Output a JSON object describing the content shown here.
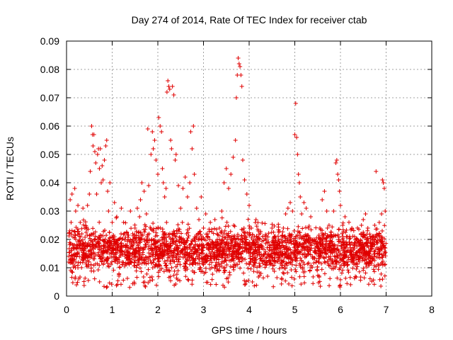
{
  "chart_data": {
    "type": "scatter",
    "title": "Day 274 of 2014, Rate Of TEC Index for receiver ctab",
    "xlabel": "GPS time / hours",
    "ylabel": "ROTI / TECUs",
    "xlim": [
      0,
      8
    ],
    "ylim": [
      0,
      0.09
    ],
    "xticks": [
      "0",
      "1",
      "2",
      "3",
      "4",
      "5",
      "6",
      "7",
      "8"
    ],
    "yticks": [
      "0",
      "0.01",
      "0.02",
      "0.03",
      "0.04",
      "0.05",
      "0.06",
      "0.07",
      "0.08",
      "0.09"
    ],
    "grid": true,
    "marker": "+",
    "color": "#e00000",
    "series": [
      {
        "name": "ROTI",
        "points": [
          [
            0.05,
            0.012
          ],
          [
            0.08,
            0.034
          ],
          [
            0.1,
            0.026
          ],
          [
            0.12,
            0.036
          ],
          [
            0.15,
            0.018
          ],
          [
            0.18,
            0.038
          ],
          [
            0.2,
            0.03
          ],
          [
            0.22,
            0.014
          ],
          [
            0.25,
            0.032
          ],
          [
            0.28,
            0.022
          ],
          [
            0.3,
            0.026
          ],
          [
            0.33,
            0.016
          ],
          [
            0.36,
            0.031
          ],
          [
            0.4,
            0.024
          ],
          [
            0.43,
            0.012
          ],
          [
            0.46,
            0.032
          ],
          [
            0.5,
            0.036
          ],
          [
            0.52,
            0.044
          ],
          [
            0.55,
            0.06
          ],
          [
            0.57,
            0.057
          ],
          [
            0.58,
            0.053
          ],
          [
            0.6,
            0.057
          ],
          [
            0.62,
            0.051
          ],
          [
            0.64,
            0.047
          ],
          [
            0.66,
            0.036
          ],
          [
            0.68,
            0.05
          ],
          [
            0.7,
            0.052
          ],
          [
            0.72,
            0.045
          ],
          [
            0.74,
            0.052
          ],
          [
            0.76,
            0.04
          ],
          [
            0.78,
            0.046
          ],
          [
            0.8,
            0.041
          ],
          [
            0.83,
            0.048
          ],
          [
            0.86,
            0.053
          ],
          [
            0.88,
            0.055
          ],
          [
            0.9,
            0.037
          ],
          [
            0.92,
            0.03
          ],
          [
            0.95,
            0.04
          ],
          [
            1.0,
            0.026
          ],
          [
            1.05,
            0.033
          ],
          [
            1.1,
            0.028
          ],
          [
            1.15,
            0.02
          ],
          [
            1.2,
            0.031
          ],
          [
            1.25,
            0.026
          ],
          [
            1.3,
            0.018
          ],
          [
            1.35,
            0.02
          ],
          [
            1.4,
            0.03
          ],
          [
            1.45,
            0.022
          ],
          [
            1.5,
            0.024
          ],
          [
            1.55,
            0.031
          ],
          [
            1.6,
            0.028
          ],
          [
            1.62,
            0.034
          ],
          [
            1.65,
            0.04
          ],
          [
            1.7,
            0.037
          ],
          [
            1.75,
            0.029
          ],
          [
            1.78,
            0.059
          ],
          [
            1.8,
            0.039
          ],
          [
            1.85,
            0.05
          ],
          [
            1.88,
            0.058
          ],
          [
            1.9,
            0.052
          ],
          [
            1.93,
            0.055
          ],
          [
            1.96,
            0.048
          ],
          [
            2.0,
            0.043
          ],
          [
            2.02,
            0.063
          ],
          [
            2.05,
            0.06
          ],
          [
            2.08,
            0.058
          ],
          [
            2.1,
            0.045
          ],
          [
            2.12,
            0.04
          ],
          [
            2.15,
            0.035
          ],
          [
            2.18,
            0.038
          ],
          [
            2.2,
            0.072
          ],
          [
            2.22,
            0.076
          ],
          [
            2.24,
            0.074
          ],
          [
            2.26,
            0.073
          ],
          [
            2.28,
            0.055
          ],
          [
            2.3,
            0.052
          ],
          [
            2.32,
            0.074
          ],
          [
            2.35,
            0.071
          ],
          [
            2.38,
            0.048
          ],
          [
            2.4,
            0.05
          ],
          [
            2.45,
            0.039
          ],
          [
            2.5,
            0.031
          ],
          [
            2.55,
            0.038
          ],
          [
            2.6,
            0.042
          ],
          [
            2.65,
            0.035
          ],
          [
            2.7,
            0.04
          ],
          [
            2.72,
            0.058
          ],
          [
            2.75,
            0.052
          ],
          [
            2.78,
            0.06
          ],
          [
            2.8,
            0.043
          ],
          [
            2.85,
            0.031
          ],
          [
            2.9,
            0.027
          ],
          [
            2.95,
            0.035
          ],
          [
            3.0,
            0.024
          ],
          [
            3.05,
            0.029
          ],
          [
            3.1,
            0.021
          ],
          [
            3.15,
            0.026
          ],
          [
            3.2,
            0.019
          ],
          [
            3.25,
            0.027
          ],
          [
            3.3,
            0.022
          ],
          [
            3.35,
            0.024
          ],
          [
            3.4,
            0.03
          ],
          [
            3.45,
            0.04
          ],
          [
            3.5,
            0.045
          ],
          [
            3.55,
            0.038
          ],
          [
            3.6,
            0.043
          ],
          [
            3.65,
            0.049
          ],
          [
            3.7,
            0.055
          ],
          [
            3.72,
            0.07
          ],
          [
            3.74,
            0.078
          ],
          [
            3.76,
            0.084
          ],
          [
            3.78,
            0.082
          ],
          [
            3.8,
            0.081
          ],
          [
            3.82,
            0.078
          ],
          [
            3.84,
            0.074
          ],
          [
            3.86,
            0.048
          ],
          [
            3.9,
            0.041
          ],
          [
            3.95,
            0.036
          ],
          [
            4.0,
            0.032
          ],
          [
            4.05,
            0.024
          ],
          [
            4.1,
            0.019
          ],
          [
            4.15,
            0.027
          ],
          [
            4.2,
            0.023
          ],
          [
            4.25,
            0.018
          ],
          [
            4.3,
            0.021
          ],
          [
            4.35,
            0.015
          ],
          [
            4.4,
            0.012
          ],
          [
            4.45,
            0.018
          ],
          [
            4.5,
            0.024
          ],
          [
            4.55,
            0.021
          ],
          [
            4.6,
            0.017
          ],
          [
            4.65,
            0.013
          ],
          [
            4.7,
            0.02
          ],
          [
            4.75,
            0.024
          ],
          [
            4.8,
            0.029
          ],
          [
            4.85,
            0.031
          ],
          [
            4.9,
            0.033
          ],
          [
            4.95,
            0.03
          ],
          [
            5.0,
            0.057
          ],
          [
            5.02,
            0.068
          ],
          [
            5.04,
            0.056
          ],
          [
            5.06,
            0.05
          ],
          [
            5.08,
            0.043
          ],
          [
            5.1,
            0.04
          ],
          [
            5.12,
            0.035
          ],
          [
            5.15,
            0.029
          ],
          [
            5.2,
            0.033
          ],
          [
            5.25,
            0.031
          ],
          [
            5.3,
            0.024
          ],
          [
            5.35,
            0.028
          ],
          [
            5.4,
            0.02
          ],
          [
            5.45,
            0.016
          ],
          [
            5.5,
            0.018
          ],
          [
            5.55,
            0.024
          ],
          [
            5.6,
            0.034
          ],
          [
            5.65,
            0.037
          ],
          [
            5.7,
            0.03
          ],
          [
            5.75,
            0.025
          ],
          [
            5.8,
            0.021
          ],
          [
            5.85,
            0.03
          ],
          [
            5.9,
            0.047
          ],
          [
            5.92,
            0.048
          ],
          [
            5.94,
            0.043
          ],
          [
            5.96,
            0.041
          ],
          [
            5.98,
            0.037
          ],
          [
            6.0,
            0.032
          ],
          [
            6.05,
            0.025
          ],
          [
            6.1,
            0.028
          ],
          [
            6.15,
            0.021
          ],
          [
            6.2,
            0.019
          ],
          [
            6.25,
            0.024
          ],
          [
            6.3,
            0.018
          ],
          [
            6.35,
            0.02
          ],
          [
            6.4,
            0.016
          ],
          [
            6.45,
            0.022
          ],
          [
            6.5,
            0.027
          ],
          [
            6.55,
            0.029
          ],
          [
            6.6,
            0.024
          ],
          [
            6.65,
            0.021
          ],
          [
            6.7,
            0.018
          ],
          [
            6.75,
            0.025
          ],
          [
            6.78,
            0.044
          ],
          [
            6.8,
            0.021
          ],
          [
            6.85,
            0.026
          ],
          [
            6.9,
            0.029
          ],
          [
            6.92,
            0.041
          ],
          [
            6.94,
            0.04
          ],
          [
            6.96,
            0.038
          ],
          [
            6.98,
            0.03
          ]
        ]
      }
    ],
    "dense_band": {
      "x_range": [
        0.05,
        7.0
      ],
      "y_range": [
        0.005,
        0.028
      ],
      "y_floor": 0.003,
      "point_count": 2600,
      "note": "dense cloud of ROTI samples between ~0.005 and ~0.028 TECU/min across the whole interval"
    }
  }
}
